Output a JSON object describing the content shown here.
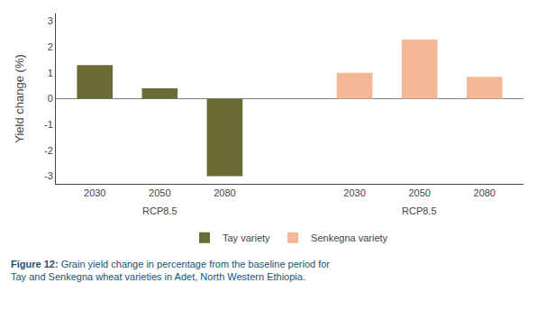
{
  "chart_data": {
    "type": "bar",
    "categories": [
      "2030",
      "2050",
      "2080",
      null,
      "2030",
      "2050",
      "2080"
    ],
    "series": [
      {
        "name": "Tay variety",
        "color": "#6b6b35",
        "values": [
          1.3,
          0.4,
          -3.0,
          null,
          null,
          null,
          null
        ]
      },
      {
        "name": "Senkegna variety",
        "color": "#f4b896",
        "values": [
          null,
          null,
          null,
          null,
          1.0,
          2.3,
          0.85
        ]
      }
    ],
    "ylabel": "Yield change (%)",
    "ylim": [
      -3.3,
      3.3
    ],
    "yticks": [
      -3,
      -2,
      -1,
      0,
      1,
      2,
      3
    ],
    "annotations": [
      "RCP8.5",
      "RCP8.5"
    ],
    "caption": "Figure 12: Grain yield change in percentage from the baseline period for\nTay and Senkegna wheat varieties in Adet, North Western Ethiopia.",
    "grid": false,
    "legend": "bottom"
  }
}
